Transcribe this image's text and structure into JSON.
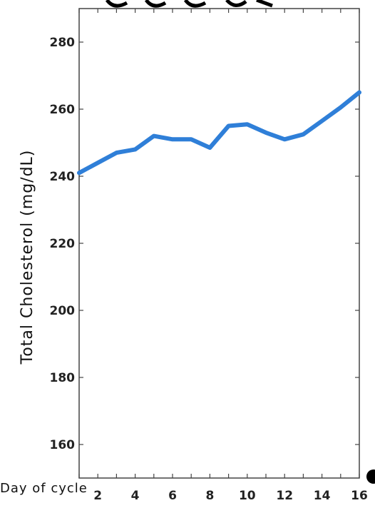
{
  "chart_data": {
    "type": "line",
    "title": "",
    "ylabel": "Total Cholesterol (mg/dL)",
    "xlabel": "Day of cycle",
    "xlim": [
      1,
      16
    ],
    "ylim": [
      150,
      290
    ],
    "xticks": [
      2,
      4,
      6,
      8,
      10,
      12,
      14,
      16
    ],
    "yticks": [
      160,
      180,
      200,
      220,
      240,
      260,
      280
    ],
    "grid": false,
    "series": [
      {
        "color": "#2f7fd8",
        "x": [
          1,
          2,
          3,
          4,
          5,
          6,
          7,
          8,
          9,
          10,
          11,
          12,
          13,
          14,
          15,
          16
        ],
        "y": [
          241,
          244,
          247,
          248,
          252,
          251,
          251,
          248.5,
          255,
          255.5,
          253,
          251,
          252.5,
          256.5,
          260.5,
          265
        ]
      }
    ]
  }
}
